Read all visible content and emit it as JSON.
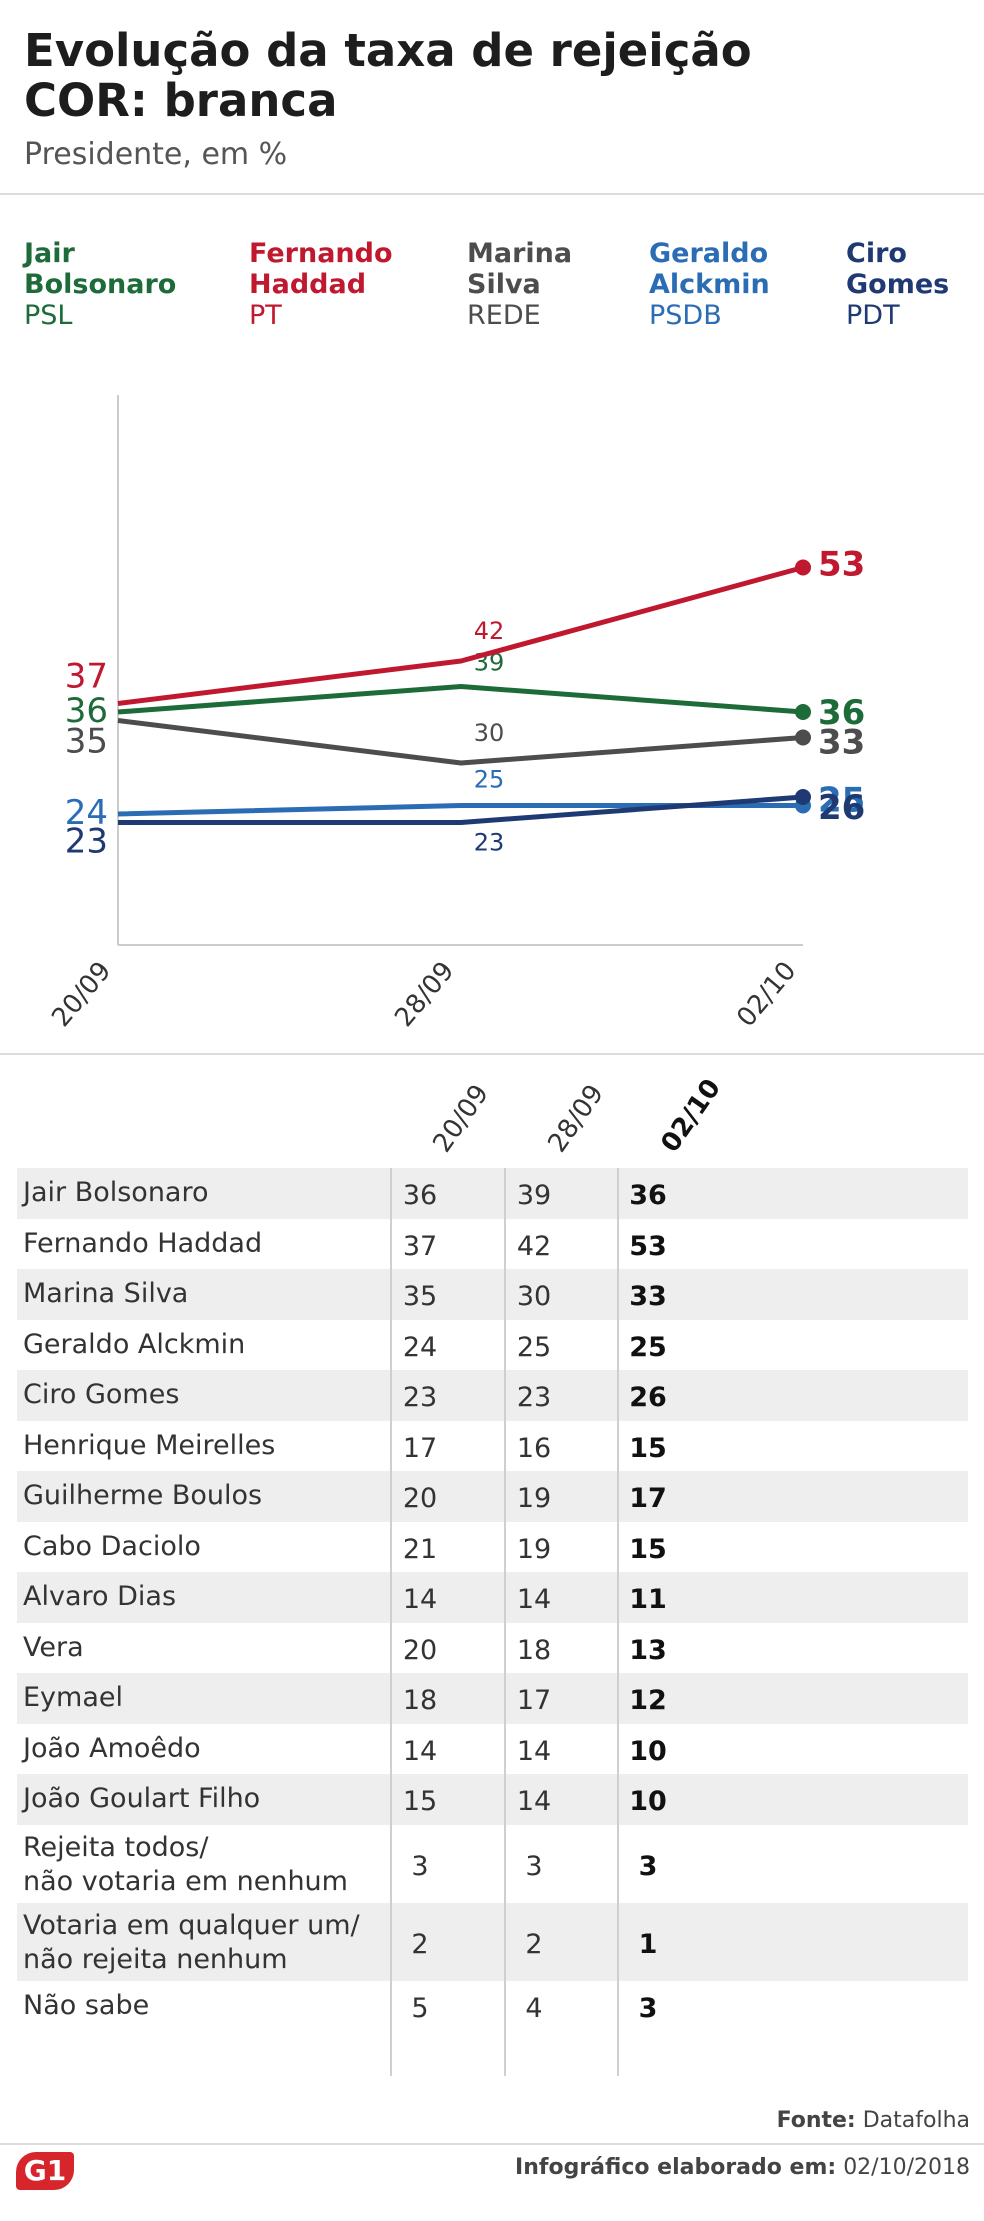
{
  "header": {
    "title_line1": "Evolução da taxa de rejeição",
    "title_line2": "COR: branca",
    "subtitle": "Presidente, em %"
  },
  "legend": [
    {
      "name_line1": "Jair",
      "name_line2": "Bolsonaro",
      "party": "PSL",
      "color": "#1e6b3a"
    },
    {
      "name_line1": "Fernando",
      "name_line2": "Haddad",
      "party": "PT",
      "color": "#c0182f"
    },
    {
      "name_line1": "Marina",
      "name_line2": "Silva",
      "party": "REDE",
      "color": "#4d4d4d"
    },
    {
      "name_line1": "Geraldo",
      "name_line2": "Alckmin",
      "party": "PSDB",
      "color": "#2a6db5"
    },
    {
      "name_line1": "Ciro",
      "name_line2": "Gomes",
      "party": "PDT",
      "color": "#1f3a73"
    }
  ],
  "chart_data": {
    "type": "line",
    "x": [
      "20/09",
      "28/09",
      "02/10"
    ],
    "ylim": [
      0,
      60
    ],
    "grid": false,
    "series": [
      {
        "name": "Jair Bolsonaro",
        "color": "#1e6b3a",
        "values": [
          36,
          39,
          36
        ]
      },
      {
        "name": "Fernando Haddad",
        "color": "#c0182f",
        "values": [
          37,
          42,
          53
        ]
      },
      {
        "name": "Marina Silva",
        "color": "#4d4d4d",
        "values": [
          35,
          30,
          33
        ]
      },
      {
        "name": "Geraldo Alckmin",
        "color": "#2a6db5",
        "values": [
          24,
          25,
          25
        ]
      },
      {
        "name": "Ciro Gomes",
        "color": "#1f3a73",
        "values": [
          23,
          23,
          26
        ]
      }
    ]
  },
  "table": {
    "columns": [
      "20/09",
      "28/09",
      "02/10"
    ],
    "rows": [
      {
        "name": "Jair Bolsonaro",
        "v1": "36",
        "v2": "39",
        "v3": "36"
      },
      {
        "name": "Fernando Haddad",
        "v1": "37",
        "v2": "42",
        "v3": "53"
      },
      {
        "name": "Marina Silva",
        "v1": "35",
        "v2": "30",
        "v3": "33"
      },
      {
        "name": "Geraldo Alckmin",
        "v1": "24",
        "v2": "25",
        "v3": "25"
      },
      {
        "name": "Ciro Gomes",
        "v1": "23",
        "v2": "23",
        "v3": "26"
      },
      {
        "name": "Henrique Meirelles",
        "v1": "17",
        "v2": "16",
        "v3": "15"
      },
      {
        "name": "Guilherme Boulos",
        "v1": "20",
        "v2": "19",
        "v3": "17"
      },
      {
        "name": "Cabo Daciolo",
        "v1": "21",
        "v2": "19",
        "v3": "15"
      },
      {
        "name": "Alvaro Dias",
        "v1": "14",
        "v2": "14",
        "v3": "11"
      },
      {
        "name": "Vera",
        "v1": "20",
        "v2": "18",
        "v3": "13"
      },
      {
        "name": "Eymael",
        "v1": "18",
        "v2": "17",
        "v3": "12"
      },
      {
        "name": "João Amoêdo",
        "v1": "14",
        "v2": "14",
        "v3": "10"
      },
      {
        "name": "João Goulart Filho",
        "v1": "15",
        "v2": "14",
        "v3": "10"
      },
      {
        "name": "Rejeita todos/\nnão votaria em nenhum",
        "v1": "3",
        "v2": "3",
        "v3": "3"
      },
      {
        "name": "Votaria em qualquer um/\nnão rejeita nenhum",
        "v1": "2",
        "v2": "2",
        "v3": "1"
      },
      {
        "name": "Não sabe",
        "v1": "5",
        "v2": "4",
        "v3": "3"
      }
    ]
  },
  "footer": {
    "source_label": "Fonte:",
    "source": "Datafolha",
    "made_label": "Infográfico elaborado em:",
    "made_date": "02/10/2018",
    "logo": "G1"
  }
}
